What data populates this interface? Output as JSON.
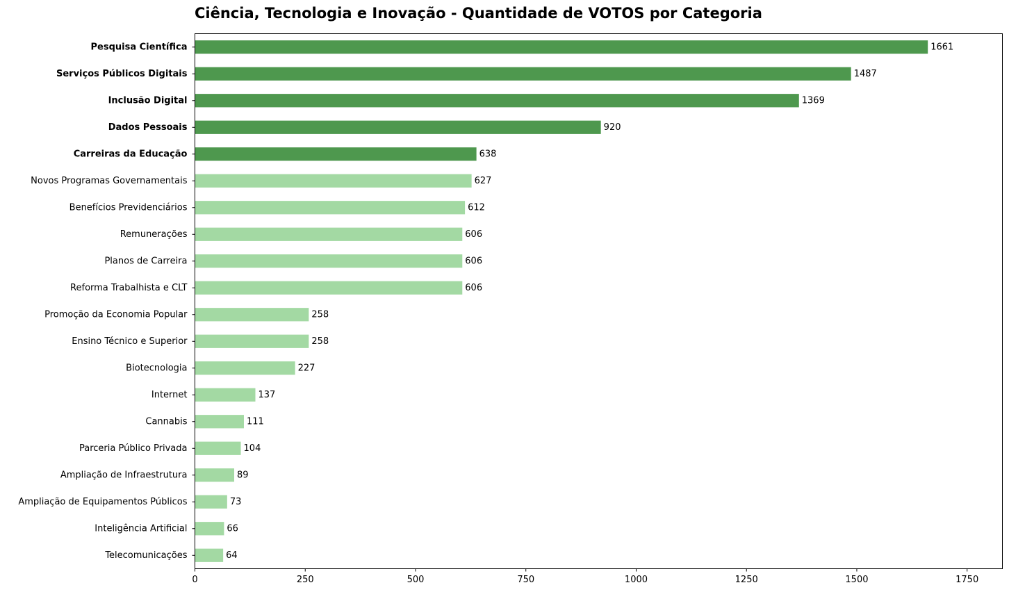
{
  "chart_data": {
    "type": "bar",
    "orientation": "horizontal",
    "title": "Ciência, Tecnologia e Inovação - Quantidade de VOTOS por Categoria",
    "xlabel": "",
    "ylabel": "",
    "xlim": [
      0,
      1830
    ],
    "xticks": [
      0,
      250,
      500,
      750,
      1000,
      1250,
      1500,
      1750
    ],
    "grid": false,
    "legend": "none",
    "highlight_color": "#4e984e",
    "base_color": "#a3d9a3",
    "categories": [
      "Pesquisa Científica",
      "Serviços Públicos Digitais",
      "Inclusão Digital",
      "Dados Pessoais",
      "Carreiras da Educação",
      "Novos Programas Governamentais",
      "Benefícios Previdenciários",
      "Remunerações",
      "Planos de Carreira",
      "Reforma Trabalhista e CLT",
      "Promoção da Economia Popular",
      "Ensino Técnico e Superior",
      "Biotecnologia",
      "Internet",
      "Cannabis",
      "Parceria Público Privada",
      "Ampliação de Infraestrutura",
      "Ampliação de Equipamentos Públicos",
      "Inteligência Artificial",
      "Telecomunicações"
    ],
    "values": [
      1661,
      1487,
      1369,
      920,
      638,
      627,
      612,
      606,
      606,
      606,
      258,
      258,
      227,
      137,
      111,
      104,
      89,
      73,
      66,
      64
    ],
    "highlighted": [
      true,
      true,
      true,
      true,
      true,
      false,
      false,
      false,
      false,
      false,
      false,
      false,
      false,
      false,
      false,
      false,
      false,
      false,
      false,
      false
    ]
  }
}
